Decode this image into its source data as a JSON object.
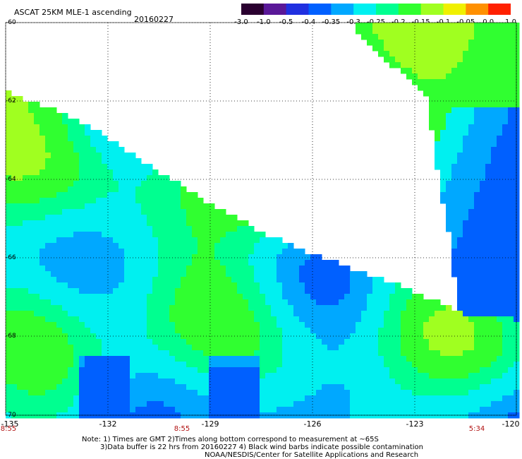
{
  "header": {
    "title": "ASCAT 25KM MLE-1 ascending",
    "date": "20160227"
  },
  "colorbar": {
    "labels": [
      "-3.0",
      "-1.0",
      "-0.5",
      "-0.4",
      "-0.35",
      "-0.3",
      "-0.25",
      "-0.2",
      "-0.15",
      "-0.1",
      "-0.05",
      "0.0",
      "1.0"
    ],
    "colors": [
      "#2a0030",
      "#5a1898",
      "#2030e0",
      "#0060ff",
      "#00a8ff",
      "#00f0f0",
      "#00ff90",
      "#30ff30",
      "#a0ff20",
      "#f0f000",
      "#ff9000",
      "#ff2000"
    ]
  },
  "axes": {
    "lat_labels": [
      "-60",
      "-62",
      "-64",
      "-66",
      "-68",
      "-70"
    ],
    "lon_labels": [
      "-135",
      "-132",
      "-129",
      "-126",
      "-123",
      "-120"
    ],
    "pass_times": [
      "8:55",
      "8:55",
      "5:34"
    ]
  },
  "footer": {
    "note_line1": "Note: 1) Times are GMT 2)Times along bottom correspond to measurement at ~65S",
    "note_line2": "3)Data buffer is 22 hrs from 20160227 4) Black wind barbs indicate possible contamination",
    "credit": "NOAA/NESDIS/Center for Satellite Applications and Research"
  }
}
